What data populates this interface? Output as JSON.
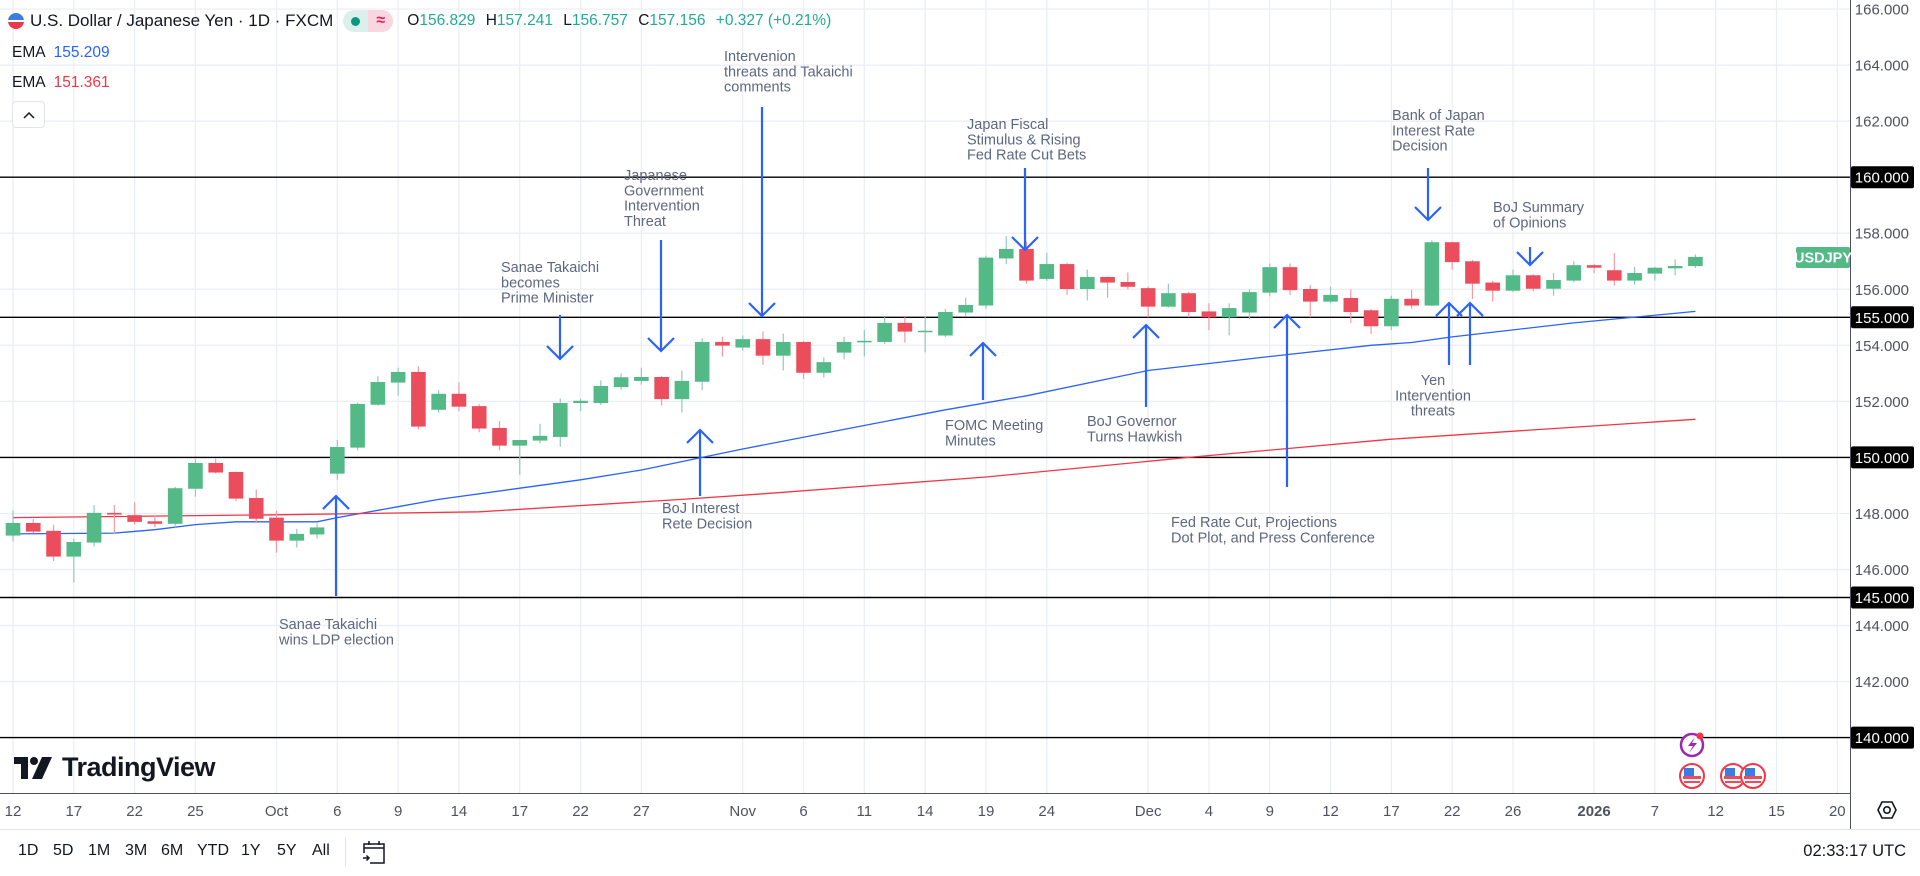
{
  "legend": {
    "symbol_title": "U.S. Dollar / Japanese Yen · 1D · FXCM",
    "open_label": "O",
    "open": "156.829",
    "high_label": "H",
    "high": "157.241",
    "low_label": "L",
    "low": "156.757",
    "close_label": "C",
    "close": "157.156",
    "change": "+0.327 (+0.21%)",
    "market_status_icon": "green-dot-icon",
    "data_icon": "approx-icon"
  },
  "indicators": [
    {
      "name": "EMA",
      "value": "155.209",
      "color": "#2962ff"
    },
    {
      "name": "EMA",
      "value": "151.361",
      "color": "#f23645"
    }
  ],
  "symbol_label": "USDJPY",
  "logo_text": "TradingView",
  "toolbar": {
    "ranges": [
      "1D",
      "5D",
      "1M",
      "3M",
      "6M",
      "YTD",
      "1Y",
      "5Y",
      "All"
    ],
    "date_range_icon": "calendar-goto-icon",
    "clock": "02:33:17 UTC"
  },
  "colors": {
    "up": "#53b987",
    "down": "#eb4d5c",
    "arrow": "#2962ff",
    "annotation_text": "#5d6780",
    "level_line": "#000000"
  },
  "chart_data": {
    "type": "candlestick",
    "title": "U.S. Dollar / Japanese Yen · 1D · FXCM",
    "ylim": [
      139,
      166.1
    ],
    "grid": true,
    "price_ticks": [
      "166.000",
      "164.000",
      "162.000",
      "160.000",
      "158.000",
      "156.000",
      "155.000",
      "154.000",
      "152.000",
      "150.000",
      "148.000",
      "146.000",
      "145.000",
      "144.000",
      "142.000",
      "140.000"
    ],
    "price_tick_values": [
      166,
      164,
      162,
      160,
      158,
      156,
      155,
      154,
      152,
      150,
      148,
      146,
      145,
      144,
      142,
      140
    ],
    "levels": [
      160,
      155,
      150,
      145,
      140
    ],
    "level_labels": [
      "160.000",
      "155.000",
      "150.000",
      "145.000",
      "140.000"
    ],
    "time_ticks": [
      {
        "label": "12",
        "date": "2025-09-12"
      },
      {
        "label": "17",
        "date": "2025-09-17"
      },
      {
        "label": "22",
        "date": "2025-09-22"
      },
      {
        "label": "25",
        "date": "2025-09-25"
      },
      {
        "label": "Oct",
        "date": "2025-10-01"
      },
      {
        "label": "6",
        "date": "2025-10-06"
      },
      {
        "label": "9",
        "date": "2025-10-09"
      },
      {
        "label": "14",
        "date": "2025-10-14"
      },
      {
        "label": "17",
        "date": "2025-10-17"
      },
      {
        "label": "22",
        "date": "2025-10-22"
      },
      {
        "label": "27",
        "date": "2025-10-27"
      },
      {
        "label": "Nov",
        "date": "2025-11-03"
      },
      {
        "label": "6",
        "date": "2025-11-06"
      },
      {
        "label": "11",
        "date": "2025-11-11"
      },
      {
        "label": "14",
        "date": "2025-11-14"
      },
      {
        "label": "19",
        "date": "2025-11-19"
      },
      {
        "label": "24",
        "date": "2025-11-24"
      },
      {
        "label": "Dec",
        "date": "2025-12-01"
      },
      {
        "label": "4",
        "date": "2025-12-04"
      },
      {
        "label": "9",
        "date": "2025-12-09"
      },
      {
        "label": "12",
        "date": "2025-12-12"
      },
      {
        "label": "17",
        "date": "2025-12-17"
      },
      {
        "label": "22",
        "date": "2025-12-22"
      },
      {
        "label": "26",
        "date": "2025-12-26"
      },
      {
        "label": "2026",
        "date": "2026-01-02",
        "bold": true
      },
      {
        "label": "7",
        "date": "2026-01-07"
      },
      {
        "label": "12",
        "date": "2026-01-12"
      },
      {
        "label": "15",
        "date": "2026-01-15"
      },
      {
        "label": "20",
        "date": "2026-01-20"
      }
    ],
    "candles_columns": [
      "date",
      "open",
      "high",
      "low",
      "close"
    ],
    "candles": [
      [
        "2025-09-12",
        147.21,
        148.1,
        147.0,
        147.66
      ],
      [
        "2025-09-15",
        147.66,
        147.8,
        147.3,
        147.35
      ],
      [
        "2025-09-16",
        147.38,
        147.6,
        146.3,
        146.46
      ],
      [
        "2025-09-17",
        146.46,
        147.1,
        145.53,
        146.98
      ],
      [
        "2025-09-18",
        146.96,
        148.3,
        146.82,
        148.02
      ],
      [
        "2025-09-19",
        148.02,
        148.3,
        147.27,
        147.96
      ],
      [
        "2025-09-22",
        147.94,
        148.4,
        147.6,
        147.7
      ],
      [
        "2025-09-23",
        147.72,
        147.93,
        147.5,
        147.63
      ],
      [
        "2025-09-24",
        147.63,
        148.95,
        147.5,
        148.9
      ],
      [
        "2025-09-25",
        148.88,
        149.94,
        148.6,
        149.8
      ],
      [
        "2025-09-26",
        149.8,
        149.95,
        149.43,
        149.46
      ],
      [
        "2025-09-29",
        149.48,
        149.5,
        148.45,
        148.53
      ],
      [
        "2025-09-30",
        148.55,
        148.85,
        147.65,
        147.81
      ],
      [
        "2025-10-01",
        147.85,
        148.1,
        146.6,
        147.03
      ],
      [
        "2025-10-02",
        147.03,
        147.45,
        146.78,
        147.27
      ],
      [
        "2025-10-03",
        147.25,
        147.65,
        147.1,
        147.5
      ],
      [
        "2025-10-06",
        149.42,
        150.62,
        149.2,
        150.37
      ],
      [
        "2025-10-07",
        150.35,
        151.95,
        150.25,
        151.91
      ],
      [
        "2025-10-08",
        151.88,
        152.9,
        151.85,
        152.69
      ],
      [
        "2025-10-09",
        152.67,
        153.2,
        152.2,
        153.05
      ],
      [
        "2025-10-10",
        153.05,
        153.25,
        151.0,
        151.1
      ],
      [
        "2025-10-13",
        151.7,
        152.4,
        151.6,
        152.27
      ],
      [
        "2025-10-14",
        152.27,
        152.68,
        151.65,
        151.81
      ],
      [
        "2025-10-15",
        151.83,
        151.9,
        150.9,
        151.03
      ],
      [
        "2025-10-16",
        151.05,
        151.3,
        150.25,
        150.42
      ],
      [
        "2025-10-17",
        150.42,
        150.62,
        149.38,
        150.62
      ],
      [
        "2025-10-20",
        150.6,
        151.2,
        150.5,
        150.77
      ],
      [
        "2025-10-21",
        150.73,
        152.1,
        150.38,
        151.94
      ],
      [
        "2025-10-22",
        151.94,
        152.1,
        151.65,
        152.02
      ],
      [
        "2025-10-23",
        151.94,
        152.75,
        151.87,
        152.55
      ],
      [
        "2025-10-24",
        152.51,
        153.0,
        152.4,
        152.86
      ],
      [
        "2025-10-27",
        152.73,
        153.2,
        152.6,
        152.87
      ],
      [
        "2025-10-28",
        152.87,
        152.9,
        151.85,
        152.08
      ],
      [
        "2025-10-29",
        152.08,
        153.1,
        151.6,
        152.73
      ],
      [
        "2025-10-30",
        152.7,
        154.25,
        152.4,
        154.12
      ],
      [
        "2025-10-31",
        154.12,
        154.3,
        153.6,
        153.99
      ],
      [
        "2025-11-03",
        153.92,
        154.35,
        153.8,
        154.22
      ],
      [
        "2025-11-04",
        154.22,
        154.5,
        153.3,
        153.63
      ],
      [
        "2025-11-05",
        153.63,
        154.42,
        153.1,
        154.12
      ],
      [
        "2025-11-06",
        154.12,
        154.15,
        152.8,
        153.02
      ],
      [
        "2025-11-07",
        153.02,
        153.57,
        152.85,
        153.4
      ],
      [
        "2025-11-10",
        153.74,
        154.3,
        153.5,
        154.12
      ],
      [
        "2025-11-11",
        154.13,
        154.55,
        153.6,
        154.16
      ],
      [
        "2025-11-12",
        154.12,
        155.0,
        154.05,
        154.8
      ],
      [
        "2025-11-13",
        154.8,
        155.0,
        154.1,
        154.49
      ],
      [
        "2025-11-14",
        154.5,
        155.05,
        153.75,
        154.52
      ],
      [
        "2025-11-17",
        154.35,
        155.3,
        154.3,
        155.19
      ],
      [
        "2025-11-18",
        155.17,
        155.7,
        155.05,
        155.44
      ],
      [
        "2025-11-19",
        155.42,
        157.2,
        155.3,
        157.13
      ],
      [
        "2025-11-20",
        157.1,
        157.9,
        156.9,
        157.44
      ],
      [
        "2025-11-21",
        157.44,
        157.7,
        156.2,
        156.31
      ],
      [
        "2025-11-24",
        156.37,
        157.3,
        156.3,
        156.9
      ],
      [
        "2025-11-25",
        156.9,
        156.95,
        155.8,
        156.01
      ],
      [
        "2025-11-26",
        156.01,
        156.7,
        155.6,
        156.44
      ],
      [
        "2025-11-27",
        156.44,
        156.45,
        155.7,
        156.24
      ],
      [
        "2025-11-28",
        156.26,
        156.6,
        156.0,
        156.09
      ],
      [
        "2025-12-01",
        156.04,
        156.1,
        155.0,
        155.38
      ],
      [
        "2025-12-02",
        155.38,
        156.2,
        155.35,
        155.86
      ],
      [
        "2025-12-03",
        155.86,
        155.9,
        155.0,
        155.19
      ],
      [
        "2025-12-04",
        155.21,
        155.5,
        154.54,
        155.0
      ],
      [
        "2025-12-05",
        155.0,
        155.5,
        154.36,
        155.33
      ],
      [
        "2025-12-08",
        155.17,
        156.0,
        154.93,
        155.9
      ],
      [
        "2025-12-09",
        155.88,
        156.92,
        155.75,
        156.79
      ],
      [
        "2025-12-10",
        156.79,
        156.92,
        155.8,
        155.97
      ],
      [
        "2025-12-11",
        156.01,
        156.15,
        155.0,
        155.56
      ],
      [
        "2025-12-12",
        155.56,
        156.1,
        155.5,
        155.8
      ],
      [
        "2025-12-15",
        155.69,
        156.0,
        154.8,
        155.19
      ],
      [
        "2025-12-16",
        155.25,
        155.3,
        154.4,
        154.68
      ],
      [
        "2025-12-17",
        154.68,
        155.77,
        154.54,
        155.66
      ],
      [
        "2025-12-18",
        155.66,
        155.98,
        155.3,
        155.42
      ],
      [
        "2025-12-19",
        155.42,
        157.75,
        155.4,
        157.68
      ],
      [
        "2025-12-22",
        157.68,
        157.7,
        156.7,
        156.97
      ],
      [
        "2025-12-23",
        157.0,
        157.05,
        155.65,
        156.2
      ],
      [
        "2025-12-24",
        156.24,
        156.3,
        155.56,
        155.95
      ],
      [
        "2025-12-26",
        155.95,
        156.7,
        155.9,
        156.5
      ],
      [
        "2025-12-29",
        156.5,
        156.54,
        155.92,
        156.02
      ],
      [
        "2025-12-30",
        156.02,
        156.58,
        155.77,
        156.33
      ],
      [
        "2025-12-31",
        156.31,
        157.0,
        156.25,
        156.86
      ],
      [
        "2026-01-02",
        156.86,
        156.9,
        156.57,
        156.77
      ],
      [
        "2026-01-05",
        156.68,
        157.29,
        156.13,
        156.31
      ],
      [
        "2026-01-06",
        156.31,
        156.8,
        156.16,
        156.58
      ],
      [
        "2026-01-07",
        156.56,
        156.8,
        156.31,
        156.77
      ],
      [
        "2026-01-08",
        156.75,
        157.07,
        156.5,
        156.83
      ],
      [
        "2026-01-09",
        156.829,
        157.241,
        156.757,
        157.156
      ]
    ],
    "ema_series": [
      {
        "name": "EMA",
        "color": "#2962ff",
        "points": [
          [
            "2025-09-12",
            147.27
          ],
          [
            "2025-09-19",
            147.3
          ],
          [
            "2025-09-23",
            147.42
          ],
          [
            "2025-09-25",
            147.6
          ],
          [
            "2025-09-29",
            147.7
          ],
          [
            "2025-10-03",
            147.7
          ],
          [
            "2025-10-06",
            147.85
          ],
          [
            "2025-10-09",
            148.24
          ],
          [
            "2025-10-13",
            148.5
          ],
          [
            "2025-10-17",
            148.9
          ],
          [
            "2025-10-22",
            149.2
          ],
          [
            "2025-10-27",
            149.55
          ],
          [
            "2025-10-30",
            150.0
          ],
          [
            "2025-11-03",
            150.3
          ],
          [
            "2025-11-10",
            151.0
          ],
          [
            "2025-11-17",
            151.7
          ],
          [
            "2025-11-21",
            152.2
          ],
          [
            "2025-12-01",
            153.1
          ],
          [
            "2025-12-09",
            153.6
          ],
          [
            "2025-12-16",
            154.0
          ],
          [
            "2025-12-18",
            154.1
          ],
          [
            "2025-12-22",
            154.3
          ],
          [
            "2025-12-31",
            154.8
          ],
          [
            "2026-01-09",
            155.209
          ]
        ]
      },
      {
        "name": "EMA",
        "color": "#f23645",
        "points": [
          [
            "2025-09-12",
            147.85
          ],
          [
            "2025-10-01",
            147.95
          ],
          [
            "2025-10-15",
            148.06
          ],
          [
            "2025-10-29",
            148.5
          ],
          [
            "2025-11-04",
            148.7
          ],
          [
            "2025-11-19",
            149.3
          ],
          [
            "2025-12-03",
            150.0
          ],
          [
            "2025-12-17",
            150.65
          ],
          [
            "2026-01-09",
            151.361
          ]
        ]
      }
    ],
    "annotations": [
      {
        "lines": [
          "Sanae Takaichi",
          "wins LDP election"
        ],
        "arrow": "up"
      },
      {
        "lines": [
          "Sanae Takaichi",
          "becomes",
          "Prime Minister"
        ],
        "arrow": "down"
      },
      {
        "lines": [
          "Japanese",
          "Government",
          "Intervention",
          "Threat"
        ],
        "arrow": "down"
      },
      {
        "lines": [
          "BoJ Interest",
          "Rete Decision"
        ],
        "arrow": "up"
      },
      {
        "lines": [
          "Intervenion",
          "threats and Takaichi",
          "comments"
        ],
        "arrow": "down"
      },
      {
        "lines": [
          "Japan Fiscal",
          "Stimulus & Rising",
          "Fed Rate Cut Bets"
        ],
        "arrow": "down"
      },
      {
        "lines": [
          "FOMC Meeting",
          "Minutes"
        ],
        "arrow": "up"
      },
      {
        "lines": [
          "BoJ Governor",
          "Turns Hawkish"
        ],
        "arrow": "up"
      },
      {
        "lines": [
          "Fed Rate Cut, Projections",
          "Dot Plot, and Press Conference"
        ],
        "arrow": "up"
      },
      {
        "lines": [
          "Bank of Japan",
          "Interest Rate",
          "Decision"
        ],
        "arrow": "down"
      },
      {
        "lines": [
          "BoJ Summary",
          "of Opinions"
        ],
        "arrow": "down"
      },
      {
        "lines": [
          "Yen",
          "Intervention",
          "threats"
        ],
        "arrow": "up"
      }
    ],
    "event_icons": [
      "lightning-icon",
      "us-flag-icon",
      "us-flag-icon",
      "us-flag-icon"
    ]
  }
}
